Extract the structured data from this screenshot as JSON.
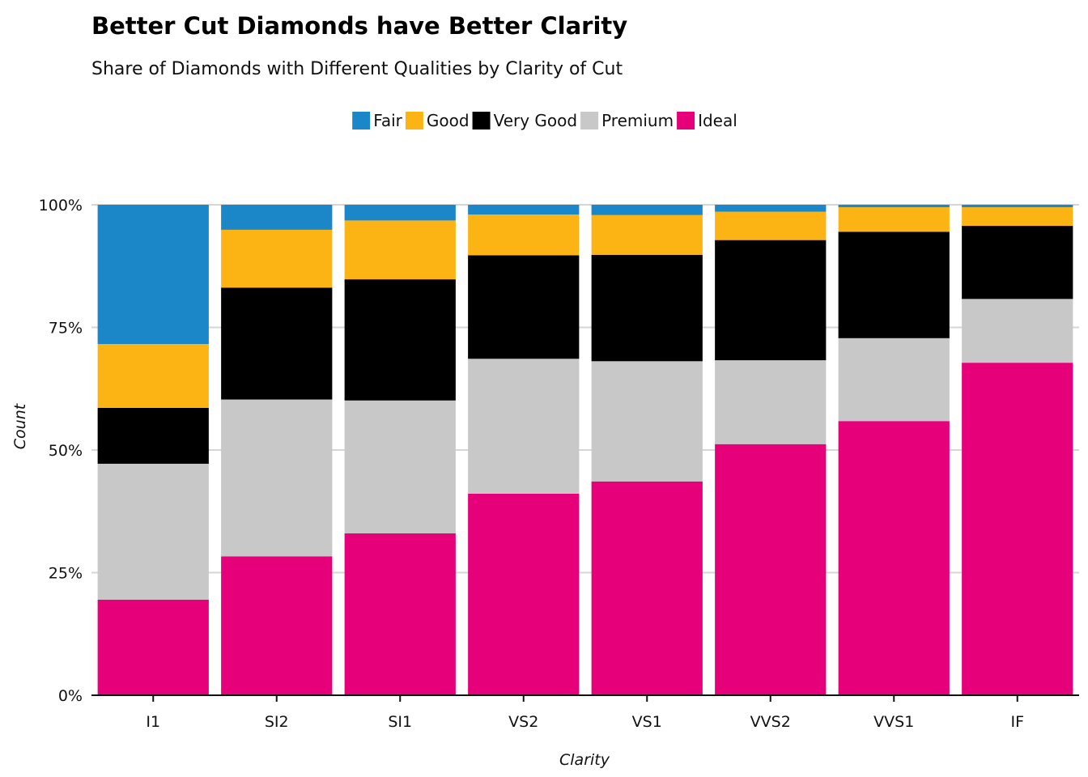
{
  "chart_data": {
    "type": "bar",
    "stacked": true,
    "normalized": true,
    "title": "Better Cut Diamonds have Better Clarity",
    "subtitle": "Share of Diamonds with Different Qualities by Clarity of Cut",
    "xlabel": "Clarity",
    "ylabel": "Count",
    "ylim": [
      0,
      1
    ],
    "yticks": [
      0,
      0.25,
      0.5,
      0.75,
      1.0
    ],
    "ytick_labels": [
      "0%",
      "25%",
      "50%",
      "75%",
      "100%"
    ],
    "grid": true,
    "legend_position": "top",
    "categories": [
      "I1",
      "SI2",
      "SI1",
      "VS2",
      "VS1",
      "VVS2",
      "VVS1",
      "IF"
    ],
    "series": [
      {
        "name": "Fair",
        "color": "#1b86c8",
        "values": [
          0.284,
          0.051,
          0.032,
          0.02,
          0.021,
          0.014,
          0.005,
          0.005
        ]
      },
      {
        "name": "Good",
        "color": "#fbb414",
        "values": [
          0.13,
          0.118,
          0.12,
          0.083,
          0.081,
          0.058,
          0.05,
          0.038
        ]
      },
      {
        "name": "Very Good",
        "color": "#000000",
        "values": [
          0.114,
          0.228,
          0.247,
          0.211,
          0.217,
          0.245,
          0.217,
          0.149
        ]
      },
      {
        "name": "Premium",
        "color": "#c8c8c8",
        "values": [
          0.277,
          0.32,
          0.271,
          0.275,
          0.245,
          0.171,
          0.169,
          0.13
        ]
      },
      {
        "name": "Ideal",
        "color": "#e6007a",
        "values": [
          0.195,
          0.283,
          0.33,
          0.411,
          0.436,
          0.512,
          0.559,
          0.678
        ]
      }
    ]
  }
}
